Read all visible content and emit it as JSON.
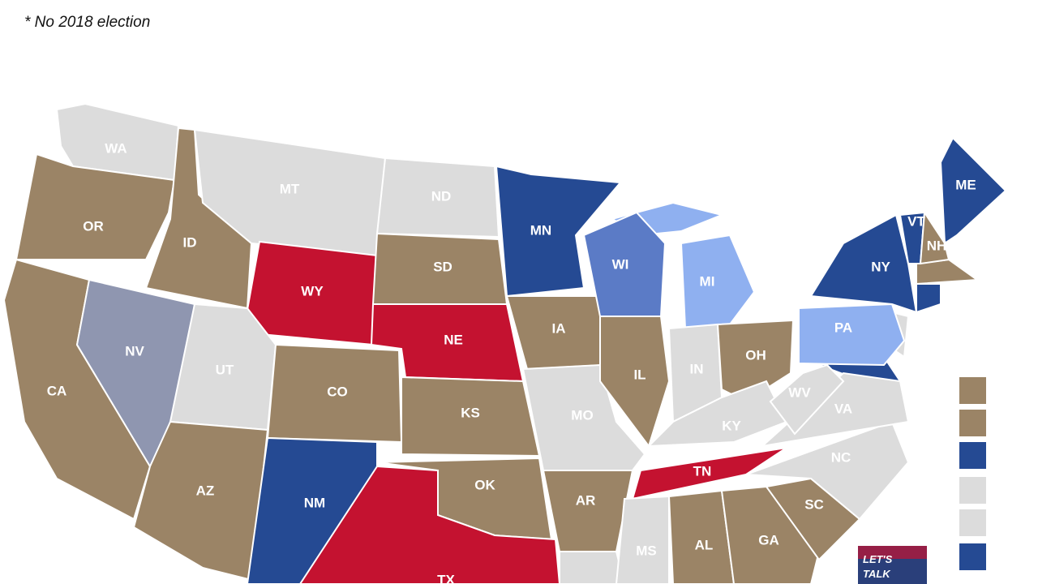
{
  "note": "* No 2018 election",
  "states": [
    {
      "label": "WA",
      "color": "#dcdcdc"
    },
    {
      "label": "OR",
      "color": "#9b8466"
    },
    {
      "label": "CA",
      "color": "#9b8466"
    },
    {
      "label": "NV",
      "color": "#8f96b0"
    },
    {
      "label": "ID",
      "color": "#9b8466"
    },
    {
      "label": "MT",
      "color": "#dcdcdc"
    },
    {
      "label": "WY",
      "color": "#c41230"
    },
    {
      "label": "UT",
      "color": "#dcdcdc"
    },
    {
      "label": "CO",
      "color": "#9b8466"
    },
    {
      "label": "AZ",
      "color": "#9b8466"
    },
    {
      "label": "NM",
      "color": "#254a93"
    },
    {
      "label": "ND",
      "color": "#dcdcdc"
    },
    {
      "label": "SD",
      "color": "#9b8466"
    },
    {
      "label": "NE",
      "color": "#c41230"
    },
    {
      "label": "KS",
      "color": "#9b8466"
    },
    {
      "label": "OK",
      "color": "#9b8466"
    },
    {
      "label": "TX",
      "color": "#c41230"
    },
    {
      "label": "MN",
      "color": "#254a93"
    },
    {
      "label": "IA",
      "color": "#9b8466"
    },
    {
      "label": "MO",
      "color": "#dcdcdc"
    },
    {
      "label": "AR",
      "color": "#9b8466"
    },
    {
      "label": "WI",
      "color": "#5b7bc6"
    },
    {
      "label": "IL",
      "color": "#9b8466"
    },
    {
      "label": "MI",
      "color": "#8fb0f0"
    },
    {
      "label": "IN",
      "color": "#dcdcdc"
    },
    {
      "label": "OH",
      "color": "#9b8466"
    },
    {
      "label": "KY",
      "color": "#dcdcdc"
    },
    {
      "label": "TN",
      "color": "#c41230"
    },
    {
      "label": "MS",
      "color": "#dcdcdc"
    },
    {
      "label": "AL",
      "color": "#9b8466"
    },
    {
      "label": "GA",
      "color": "#9b8466"
    },
    {
      "label": "SC",
      "color": "#9b8466"
    },
    {
      "label": "NC",
      "color": "#dcdcdc"
    },
    {
      "label": "VA",
      "color": "#dcdcdc"
    },
    {
      "label": "WV",
      "color": "#dcdcdc"
    },
    {
      "label": "PA",
      "color": "#8fb0f0"
    },
    {
      "label": "NY",
      "color": "#254a93"
    },
    {
      "label": "VT",
      "color": "#254a93"
    },
    {
      "label": "NH",
      "color": "#9b8466"
    },
    {
      "label": "ME",
      "color": "#254a93"
    }
  ],
  "legend": {
    "colors": [
      "#9b8466",
      "#9b8466",
      "#254a93",
      "#dcdcdc",
      "#dcdcdc",
      "#254a93"
    ]
  },
  "logo": {
    "lines": [
      "LET'S",
      "TALK"
    ]
  }
}
